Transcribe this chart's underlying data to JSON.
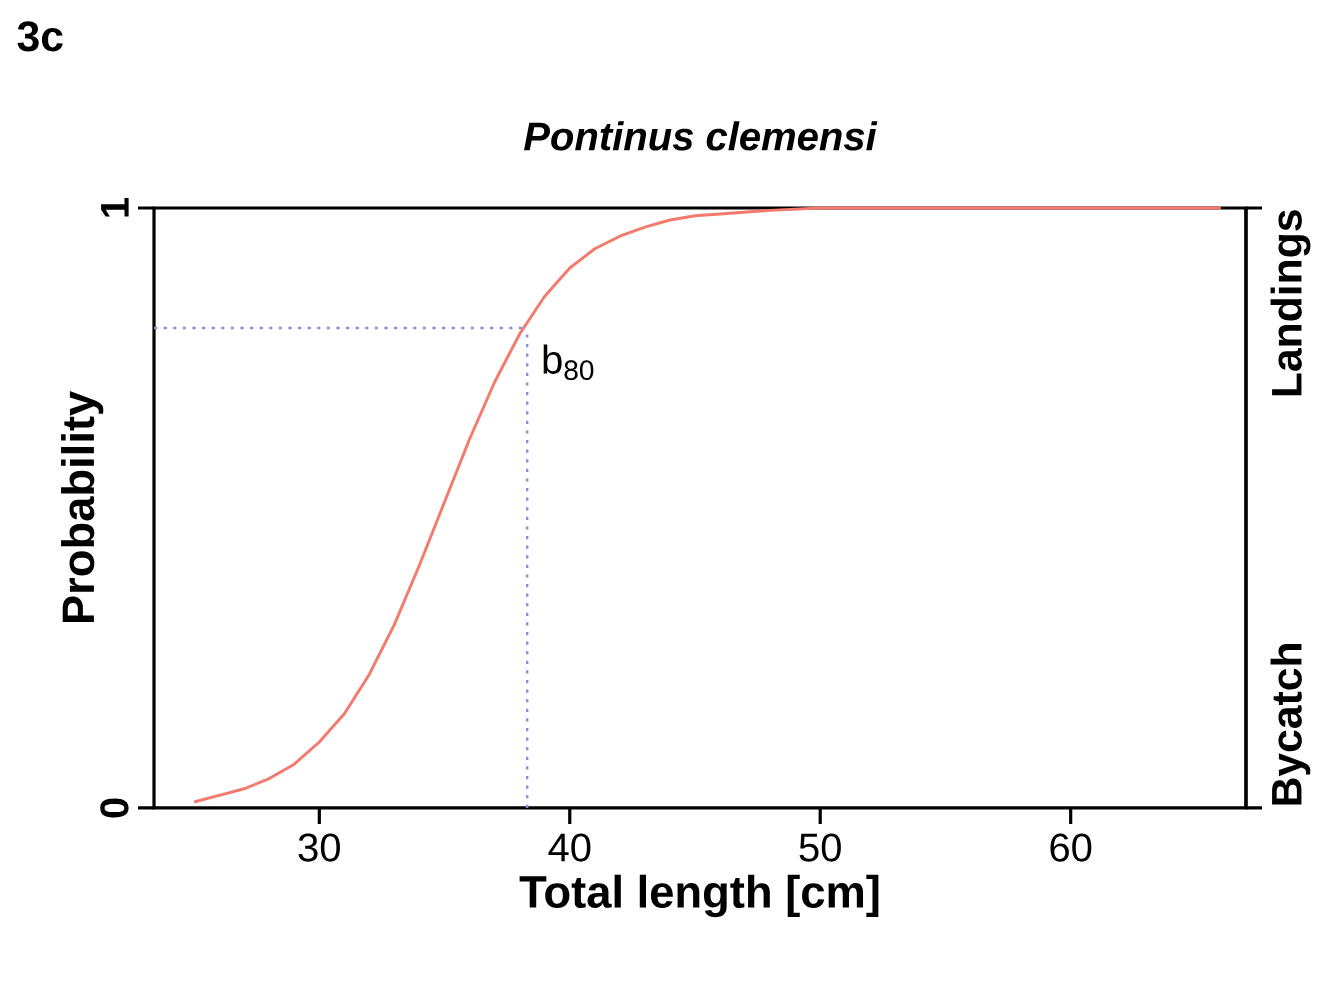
{
  "chart_data": {
    "type": "line",
    "title": "Pontinus clemensi",
    "xlabel": "Total length [cm]",
    "ylabel": "Probability",
    "annotations": [
      "3c",
      "Bycatch",
      "Landings"
    ],
    "x": [
      25,
      26,
      27,
      28,
      29,
      30,
      31,
      32,
      33,
      34,
      35,
      36,
      37,
      38,
      39,
      40,
      41,
      42,
      43,
      44,
      45,
      46,
      48,
      50,
      66
    ],
    "series": [
      {
        "color": "#f47a6e",
        "values": [
          0.01,
          0.021,
          0.032,
          0.049,
          0.073,
          0.11,
          0.157,
          0.223,
          0.306,
          0.405,
          0.51,
          0.615,
          0.71,
          0.79,
          0.853,
          0.9,
          0.932,
          0.953,
          0.968,
          0.98,
          0.987,
          0.99,
          0.996,
          1,
          1
        ]
      }
    ],
    "xlim": [
      23.4,
      67
    ],
    "ylim": [
      0,
      1
    ],
    "xticks": [
      30,
      40,
      50,
      60
    ],
    "yticks": [
      0,
      1
    ],
    "ref_lines": [
      {
        "axis": "y",
        "value": 0.8,
        "color": "#8c8ce6",
        "line_style": "dotted"
      },
      {
        "axis": "x",
        "value": 38.3,
        "label": "b$_{80}$",
        "color": "#8c8ce6",
        "line_style": "dotted"
      }
    ],
    "grid": false
  }
}
